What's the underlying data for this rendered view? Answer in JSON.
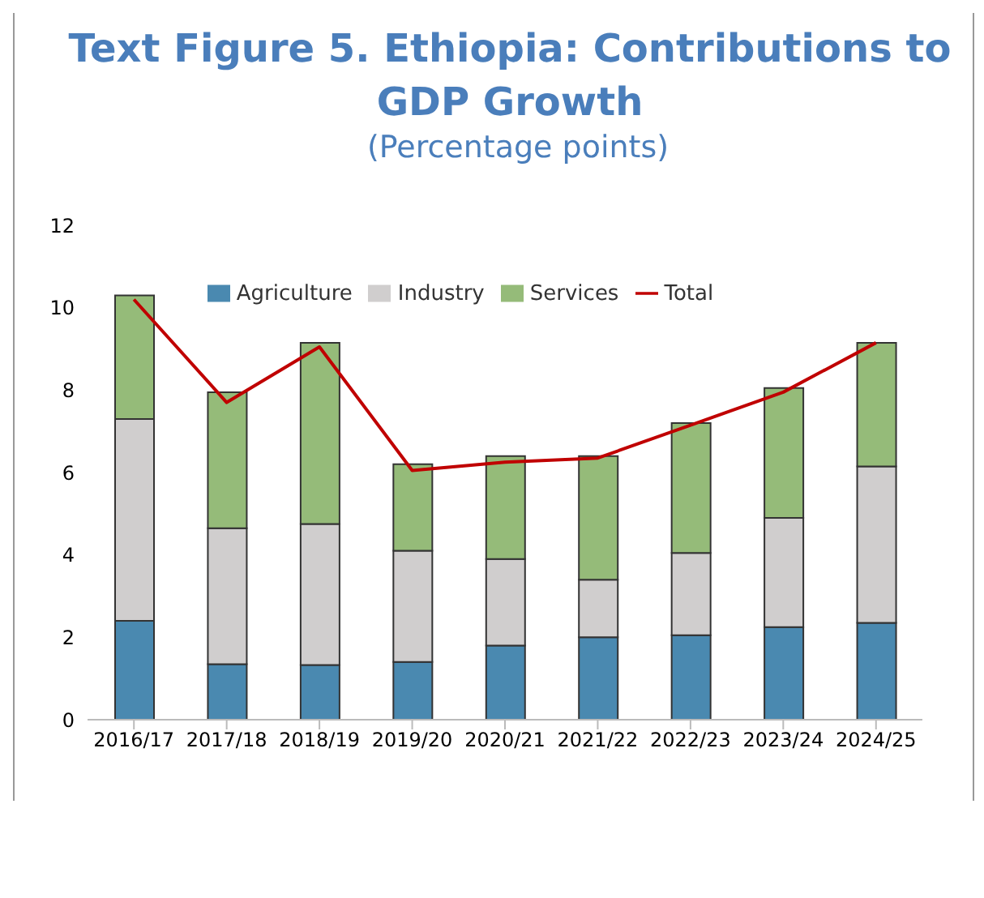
{
  "chart_data": {
    "type": "bar",
    "title": "Text Figure 5. Ethiopia: Contributions to GDP Growth",
    "subtitle": "(Percentage points)",
    "categories": [
      "2016/17",
      "2017/18",
      "2018/19",
      "2019/20",
      "2020/21",
      "2021/22",
      "2022/23",
      "2023/24",
      "2024/25"
    ],
    "stacked": true,
    "series": [
      {
        "name": "Agriculture",
        "color": "#4a89b0",
        "values": [
          2.4,
          1.35,
          1.33,
          1.4,
          1.8,
          2.0,
          2.05,
          2.25,
          2.35
        ]
      },
      {
        "name": "Industry",
        "color": "#d0cece",
        "values": [
          4.9,
          3.3,
          3.42,
          2.7,
          2.1,
          1.4,
          2.0,
          2.65,
          3.8
        ]
      },
      {
        "name": "Services",
        "color": "#95bb79",
        "values": [
          3.0,
          3.3,
          4.4,
          2.1,
          2.5,
          3.0,
          3.15,
          3.15,
          3.0
        ]
      },
      {
        "name": "Total",
        "type": "line",
        "color": "#c00000",
        "values": [
          10.2,
          7.7,
          9.05,
          6.05,
          6.25,
          6.35,
          7.15,
          7.95,
          9.15
        ]
      }
    ],
    "ylim": [
      0,
      12
    ],
    "yticks": [
      0,
      2,
      4,
      6,
      8,
      10,
      12
    ],
    "grid": false,
    "legend": "top"
  }
}
